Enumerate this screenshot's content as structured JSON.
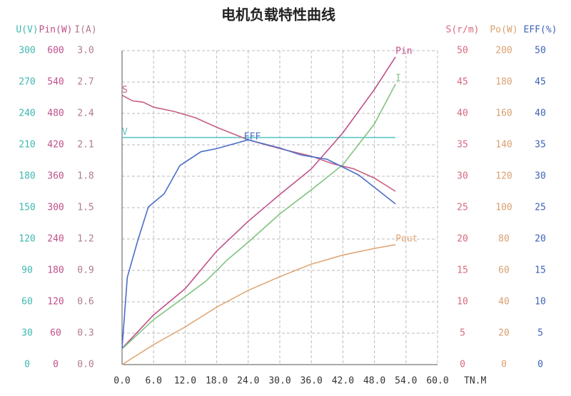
{
  "chart_data": {
    "type": "line",
    "title": "电机负载特性曲线",
    "x_label": "TN.M",
    "xlim": [
      0,
      60
    ],
    "xticks": [
      {
        "value": 0,
        "label": "0.0"
      },
      {
        "value": 6,
        "label": "6.0"
      },
      {
        "value": 12,
        "label": "12.0"
      },
      {
        "value": 18,
        "label": "18.0"
      },
      {
        "value": 24,
        "label": "24.0"
      },
      {
        "value": 30,
        "label": "30.0"
      },
      {
        "value": 36,
        "label": "36.0"
      },
      {
        "value": 42,
        "label": "42.0"
      },
      {
        "value": 48,
        "label": "48.0"
      },
      {
        "value": 54,
        "label": "54.0"
      },
      {
        "value": 60,
        "label": "60.0"
      }
    ],
    "grid": true,
    "y_axes": [
      {
        "label": "U(V)",
        "side": "left",
        "color": "#3fb8b0",
        "ylim": [
          0,
          300
        ],
        "yticks": [
          0,
          30,
          60,
          90,
          120,
          150,
          180,
          210,
          240,
          270,
          300
        ],
        "series": [
          {
            "name": "V",
            "color": "#5cc8c8",
            "x": [
              0,
              52
            ],
            "values": [
              217,
              217
            ]
          }
        ]
      },
      {
        "label": "Pin(W)",
        "side": "left",
        "color": "#c0508a",
        "ylim": [
          0,
          600
        ],
        "yticks": [
          0,
          60,
          120,
          180,
          240,
          300,
          360,
          420,
          480,
          540,
          600
        ],
        "series": [
          {
            "name": "Pin",
            "color": "#c0508a",
            "x": [
              0,
              6,
              12,
              18,
              24,
              30,
              36,
              42,
              48,
              52
            ],
            "values": [
              31,
              95,
              145,
              217,
              274,
              325,
              374,
              443,
              526,
              588
            ]
          }
        ]
      },
      {
        "label": "I(A)",
        "side": "left",
        "color": "#b07a90",
        "ylim": [
          0,
          3
        ],
        "yticks": [
          {
            "value": 0,
            "label": "0.0"
          },
          0.3,
          0.6,
          0.9,
          1.2,
          1.5,
          1.8,
          2.1,
          2.4,
          2.7,
          {
            "value": 3,
            "label": "3.0"
          }
        ],
        "series": [
          {
            "name": "I",
            "color": "#80c480",
            "x": [
              0,
              6,
              12,
              16,
              20,
              24,
              30,
              36,
              42,
              48,
              52
            ],
            "values": [
              0.15,
              0.43,
              0.65,
              0.8,
              1.0,
              1.17,
              1.44,
              1.67,
              1.91,
              2.3,
              2.68
            ]
          }
        ]
      },
      {
        "label": "S(r/m)",
        "side": "right",
        "color": "#d86a7f",
        "ylim": [
          0,
          50
        ],
        "yticks": [
          0,
          5,
          10,
          15,
          20,
          25,
          30,
          35,
          40,
          45,
          50
        ],
        "series": [
          {
            "name": "S",
            "color": "#c86080",
            "x": [
              0,
              2,
              4,
              6,
              10,
              14,
              18,
              24,
              30,
              36,
              40,
              44,
              48,
              52
            ],
            "values": [
              42.9,
              42.0,
              41.8,
              41.0,
              40.3,
              39.3,
              37.8,
              35.8,
              34.4,
              33.2,
              32.0,
              31.2,
              29.7,
              27.6
            ]
          }
        ]
      },
      {
        "label": "Po(W)",
        "side": "right",
        "color": "#d9a070",
        "ylim": [
          0,
          200
        ],
        "yticks": [
          0,
          20,
          40,
          60,
          80,
          100,
          120,
          140,
          160,
          180,
          200
        ],
        "series": [
          {
            "name": "Pout",
            "color": "#e0a878",
            "x": [
              0,
              6,
              12,
              18,
              24,
              30,
              36,
              42,
              48,
              52
            ],
            "values": [
              0,
              12.7,
              24,
              36.6,
              47.3,
              56,
              64,
              69.8,
              74,
              76.4
            ]
          }
        ]
      },
      {
        "label": "EFF(%)",
        "side": "right",
        "color": "#3f62b8",
        "ylim": [
          0,
          50
        ],
        "yticks": [
          0,
          5,
          10,
          15,
          20,
          25,
          30,
          35,
          40,
          45,
          50
        ],
        "series": [
          {
            "name": "EFF",
            "color": "#4a6ec8",
            "x": [
              0,
              1,
              3,
              5,
              8,
              11,
              15,
              18,
              24,
              30,
              34,
              39,
              45,
              52
            ],
            "values": [
              2.6,
              13.9,
              19.8,
              25.1,
              27.2,
              31.7,
              33.9,
              34.4,
              35.8,
              34.5,
              33.4,
              32.7,
              30.2,
              25.6
            ]
          }
        ]
      }
    ]
  }
}
